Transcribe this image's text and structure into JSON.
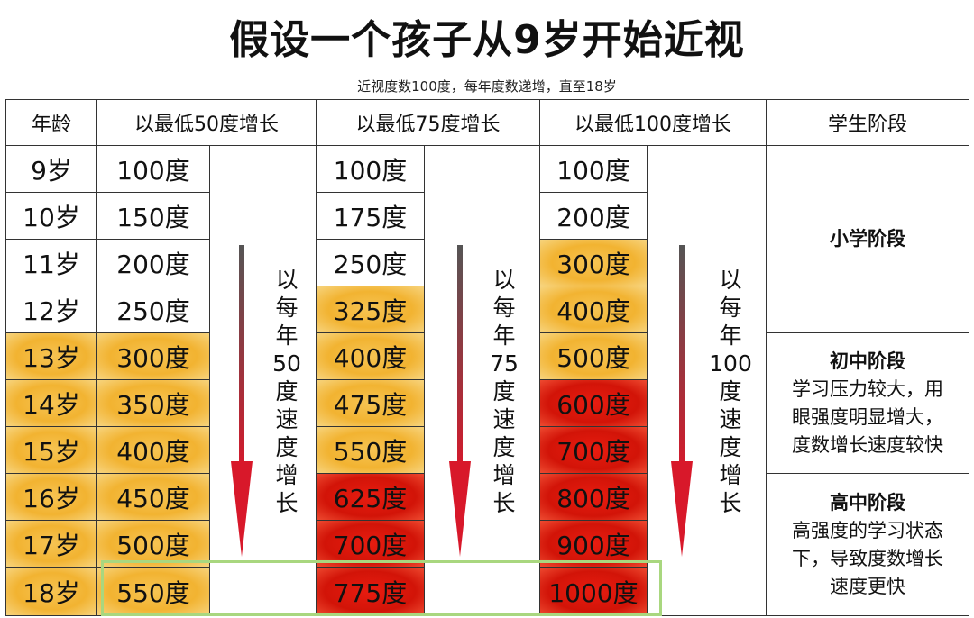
{
  "title": "假设一个孩子从9岁开始近视",
  "subtitle": "近视度数100度，每年度数递增，直至18岁",
  "headers": [
    "年龄",
    "以最低50度增长",
    "以最低75度增长",
    "以最低100度增长",
    "学生阶段"
  ],
  "ages": [
    "9岁",
    "10岁",
    "11岁",
    "12岁",
    "13岁",
    "14岁",
    "15岁",
    "16岁",
    "17岁",
    "18岁"
  ],
  "col50": [
    "100度",
    "150度",
    "200度",
    "250度",
    "300度",
    "350度",
    "400度",
    "450度",
    "500度",
    "550度"
  ],
  "col75": [
    "100度",
    "175度",
    "250度",
    "325度",
    "400度",
    "475度",
    "550度",
    "625度",
    "700度",
    "775度"
  ],
  "col100": [
    "100度",
    "200度",
    "300度",
    "400度",
    "500度",
    "600度",
    "700度",
    "800度",
    "900度",
    "1000度"
  ],
  "rate_labels": {
    "r50": [
      "以",
      "每",
      "年",
      "50",
      "度",
      "速",
      "度",
      "增",
      "长"
    ],
    "r75": [
      "以",
      "每",
      "年",
      "75",
      "度",
      "速",
      "度",
      "增",
      "长"
    ],
    "r100": [
      "以",
      "每",
      "年",
      "100",
      "度",
      "速",
      "度",
      "增",
      "长"
    ]
  },
  "stages": {
    "primary": {
      "title": "小学阶段"
    },
    "middle": {
      "title": "初中阶段",
      "lines": [
        "学习压力较大，用",
        "眼强度明显增大，",
        "度数增长速度较快"
      ]
    },
    "high": {
      "title": "高中阶段",
      "lines": [
        "高强度的学习状态",
        "下，导致度数增长",
        "速度更快"
      ]
    }
  },
  "colors": {
    "highlight_yellow": "#f2b331",
    "highlight_red": "#d21408",
    "arrow": "#d8182a",
    "frame": "#a9d77f"
  }
}
